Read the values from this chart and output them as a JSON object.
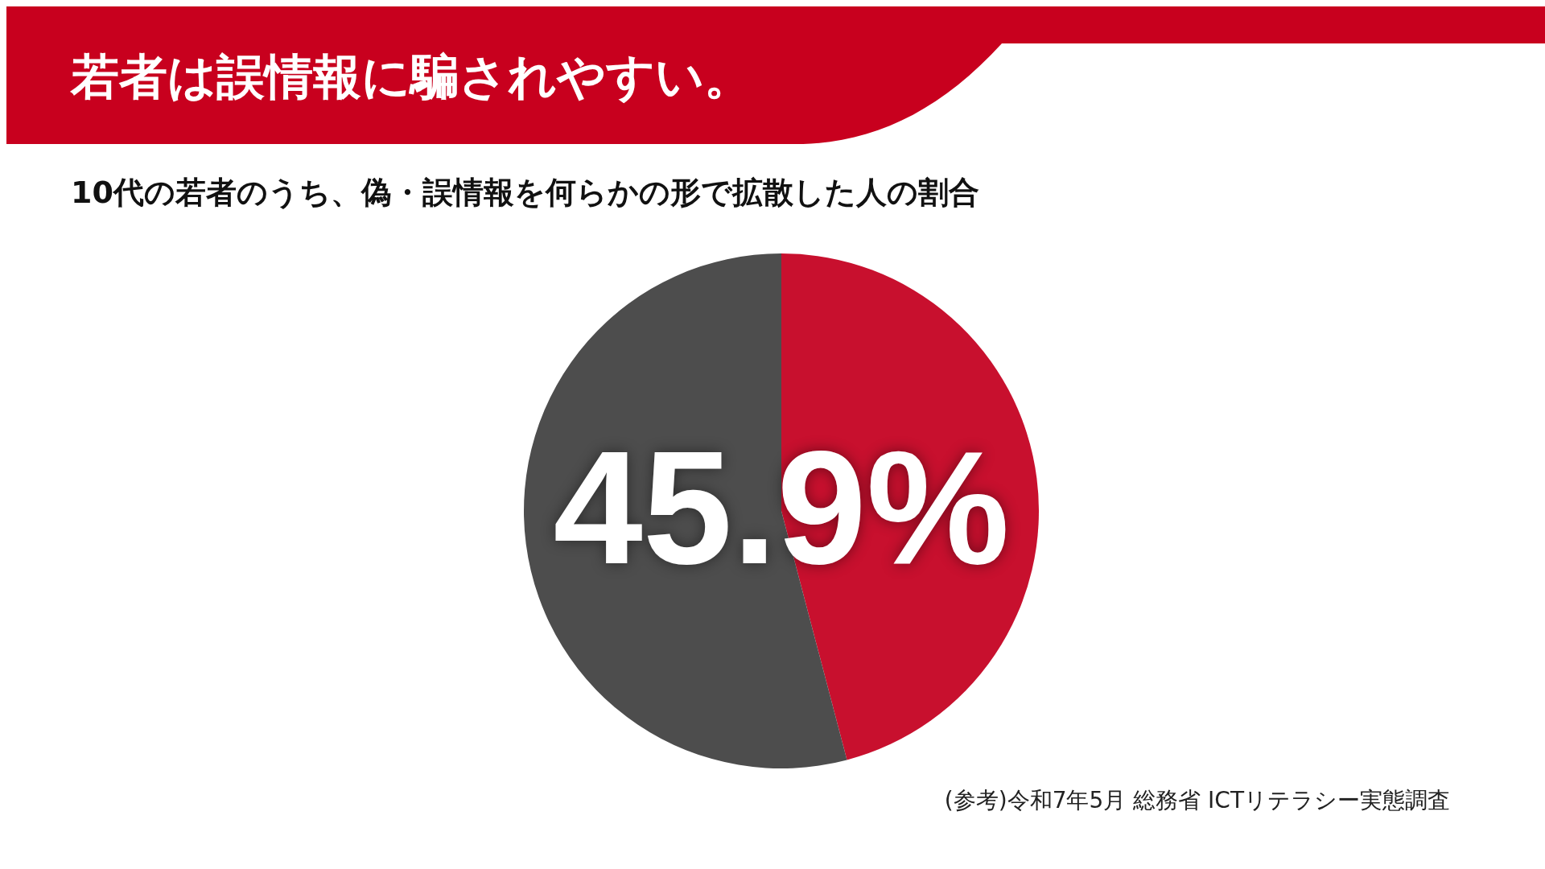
{
  "chart_data": {
    "type": "pie",
    "title": "若者は誤情報に騙されやすい。",
    "subtitle": "10代の若者のうち、偽・誤情報を何らかの形で拡散した人の割合",
    "categories": [
      null,
      null
    ],
    "values": [
      45.9,
      54.1
    ],
    "colors": [
      "#c8102e",
      "#4d4d4d"
    ],
    "value_labels": [
      "45.9%",
      null
    ],
    "annotations": [
      "(参考)令和7年5月 総務省 ICTリテラシー実態調査"
    ],
    "legend": false
  }
}
